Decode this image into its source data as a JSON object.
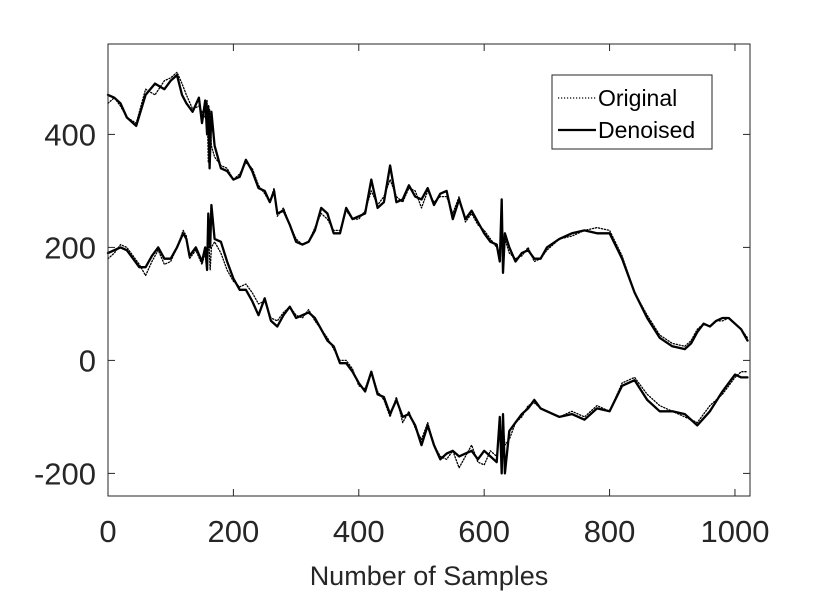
{
  "chart_data": {
    "type": "line",
    "xlabel": "Number of Samples",
    "ylabel": "",
    "xlim": [
      0,
      1024
    ],
    "ylim": [
      -240,
      560
    ],
    "xticks": [
      0,
      200,
      400,
      600,
      800,
      1000
    ],
    "yticks": [
      -200,
      0,
      200,
      400
    ],
    "xtick_labels": [
      "0",
      "200",
      "400",
      "600",
      "800",
      "1000"
    ],
    "ytick_labels": [
      "-200",
      "0",
      "200",
      "400"
    ],
    "grid": false,
    "legend_position": "top-right",
    "legend": [
      "Original",
      "Denoised"
    ],
    "series": [
      {
        "name": "Original",
        "style": "dotted",
        "color": "#000000",
        "curves": [
          {
            "x": [
              0,
              10,
              20,
              30,
              45,
              60,
              75,
              90,
              100,
              110,
              118,
              125,
              135,
              145,
              150,
              155,
              158,
              160,
              162,
              165,
              170,
              180,
              190,
              200,
              210,
              220,
              230,
              240,
              250,
              258,
              265,
              270,
              280,
              290,
              300,
              310,
              320,
              330,
              340,
              350,
              360,
              370,
              380,
              390,
              400,
              410,
              420,
              430,
              440,
              450,
              460,
              470,
              480,
              490,
              500,
              510,
              520,
              530,
              540,
              550,
              560,
              570,
              580,
              590,
              600,
              610,
              620,
              625,
              628,
              630,
              633,
              640,
              650,
              660,
              670,
              680,
              690,
              700,
              720,
              740,
              760,
              780,
              800,
              820,
              840,
              860,
              880,
              900,
              920,
              930,
              940,
              950,
              960,
              970,
              980,
              990,
              1000,
              1010,
              1020
            ],
            "y": [
              455,
              465,
              450,
              430,
              420,
              480,
              470,
              495,
              500,
              510,
              490,
              470,
              445,
              450,
              440,
              430,
              460,
              350,
              445,
              380,
              360,
              345,
              340,
              320,
              330,
              350,
              340,
              310,
              295,
              280,
              305,
              255,
              270,
              240,
              215,
              205,
              210,
              235,
              260,
              250,
              230,
              230,
              265,
              250,
              250,
              265,
              300,
              275,
              290,
              320,
              290,
              280,
              305,
              300,
              270,
              300,
              280,
              290,
              290,
              260,
              290,
              245,
              260,
              240,
              230,
              215,
              200,
              190,
              250,
              180,
              215,
              190,
              180,
              185,
              200,
              175,
              180,
              195,
              215,
              220,
              230,
              235,
              230,
              185,
              120,
              80,
              45,
              30,
              25,
              35,
              55,
              65,
              60,
              70,
              70,
              75,
              65,
              55,
              40
            ]
          },
          {
            "x": [
              0,
              10,
              20,
              30,
              40,
              50,
              60,
              70,
              80,
              90,
              100,
              110,
              120,
              125,
              130,
              140,
              150,
              155,
              158,
              160,
              163,
              165,
              170,
              180,
              190,
              200,
              210,
              220,
              230,
              240,
              250,
              260,
              270,
              280,
              290,
              300,
              310,
              320,
              330,
              340,
              350,
              360,
              370,
              380,
              390,
              400,
              410,
              420,
              430,
              440,
              450,
              460,
              470,
              480,
              490,
              500,
              510,
              520,
              530,
              540,
              550,
              560,
              570,
              580,
              590,
              600,
              610,
              620,
              625,
              628,
              630,
              633,
              640,
              650,
              660,
              670,
              680,
              690,
              700,
              720,
              740,
              760,
              780,
              800,
              820,
              840,
              860,
              880,
              900,
              920,
              940,
              960,
              980,
              1000,
              1010,
              1020
            ],
            "y": [
              180,
              190,
              205,
              200,
              185,
              170,
              150,
              175,
              195,
              170,
              175,
              200,
              230,
              220,
              180,
              195,
              170,
              190,
              175,
              230,
              160,
              200,
              210,
              190,
              160,
              140,
              130,
              135,
              120,
              100,
              105,
              75,
              70,
              85,
              95,
              80,
              75,
              90,
              70,
              55,
              40,
              20,
              0,
              0,
              -15,
              -45,
              -50,
              -20,
              -55,
              -70,
              -100,
              -65,
              -110,
              -90,
              -120,
              -140,
              -110,
              -150,
              -170,
              -175,
              -160,
              -190,
              -170,
              -150,
              -180,
              -185,
              -160,
              -170,
              -120,
              -190,
              -110,
              -150,
              -140,
              -110,
              -100,
              -80,
              -75,
              -85,
              -90,
              -100,
              -90,
              -100,
              -80,
              -90,
              -40,
              -30,
              -60,
              -80,
              -90,
              -100,
              -110,
              -80,
              -60,
              -30,
              -20,
              -20
            ]
          }
        ]
      },
      {
        "name": "Denoised",
        "style": "solid",
        "color": "#000000",
        "curves": [
          {
            "x": [
              0,
              10,
              20,
              30,
              45,
              60,
              75,
              90,
              100,
              110,
              118,
              125,
              135,
              145,
              150,
              155,
              158,
              160,
              162,
              165,
              170,
              180,
              190,
              200,
              210,
              220,
              230,
              240,
              250,
              258,
              265,
              270,
              280,
              290,
              300,
              310,
              320,
              330,
              340,
              350,
              360,
              370,
              380,
              390,
              400,
              410,
              420,
              430,
              440,
              450,
              460,
              470,
              480,
              490,
              500,
              510,
              520,
              530,
              540,
              550,
              560,
              570,
              580,
              590,
              600,
              610,
              620,
              625,
              628,
              630,
              633,
              640,
              650,
              660,
              670,
              680,
              690,
              700,
              720,
              740,
              760,
              780,
              800,
              820,
              840,
              860,
              880,
              900,
              920,
              930,
              940,
              950,
              960,
              970,
              980,
              990,
              1000,
              1010,
              1020
            ],
            "y": [
              470,
              465,
              455,
              430,
              415,
              470,
              490,
              480,
              495,
              505,
              470,
              455,
              440,
              465,
              420,
              460,
              400,
              450,
              340,
              440,
              380,
              340,
              335,
              320,
              325,
              355,
              335,
              305,
              300,
              280,
              300,
              260,
              265,
              240,
              210,
              205,
              210,
              230,
              270,
              260,
              225,
              225,
              270,
              250,
              255,
              260,
              320,
              270,
              280,
              345,
              280,
              285,
              310,
              290,
              285,
              305,
              275,
              295,
              300,
              250,
              285,
              250,
              265,
              245,
              225,
              210,
              205,
              175,
              285,
              155,
              225,
              200,
              175,
              190,
              195,
              180,
              180,
              200,
              215,
              225,
              230,
              225,
              225,
              180,
              120,
              75,
              40,
              25,
              20,
              30,
              50,
              65,
              60,
              70,
              75,
              75,
              65,
              55,
              35
            ]
          },
          {
            "x": [
              0,
              10,
              20,
              30,
              40,
              50,
              60,
              70,
              80,
              90,
              100,
              110,
              120,
              125,
              130,
              140,
              150,
              155,
              158,
              160,
              163,
              165,
              170,
              180,
              190,
              200,
              210,
              220,
              230,
              240,
              250,
              260,
              270,
              280,
              290,
              300,
              310,
              320,
              330,
              340,
              350,
              360,
              370,
              380,
              390,
              400,
              410,
              420,
              430,
              440,
              450,
              460,
              470,
              480,
              490,
              500,
              510,
              520,
              530,
              540,
              550,
              560,
              570,
              580,
              590,
              600,
              610,
              620,
              625,
              628,
              630,
              633,
              640,
              650,
              660,
              670,
              680,
              690,
              700,
              720,
              740,
              760,
              780,
              800,
              820,
              840,
              860,
              880,
              900,
              920,
              940,
              960,
              980,
              1000,
              1010,
              1020
            ],
            "y": [
              190,
              195,
              200,
              195,
              180,
              165,
              165,
              185,
              200,
              180,
              180,
              200,
              225,
              215,
              185,
              200,
              175,
              200,
              160,
              260,
              200,
              275,
              215,
              210,
              175,
              145,
              125,
              125,
              105,
              80,
              110,
              70,
              60,
              80,
              95,
              75,
              80,
              85,
              75,
              55,
              35,
              25,
              -5,
              -5,
              -20,
              -40,
              -55,
              -20,
              -60,
              -65,
              -95,
              -70,
              -100,
              -95,
              -115,
              -150,
              -115,
              -150,
              -175,
              -165,
              -160,
              -170,
              -165,
              -160,
              -175,
              -160,
              -170,
              -180,
              -100,
              -200,
              -95,
              -200,
              -125,
              -110,
              -95,
              -85,
              -70,
              -85,
              -90,
              -100,
              -95,
              -105,
              -85,
              -90,
              -45,
              -35,
              -70,
              -90,
              -90,
              -95,
              -115,
              -90,
              -55,
              -25,
              -30,
              -30
            ]
          }
        ]
      }
    ]
  }
}
